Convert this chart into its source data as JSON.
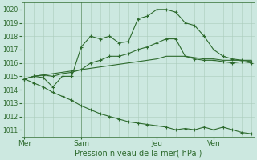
{
  "xlabel": "Pression niveau de la mer( hPa )",
  "background_color": "#cce8e0",
  "grid_color": "#aaccbb",
  "line_color": "#2d6a2d",
  "ylim": [
    1010.5,
    1020.5
  ],
  "yticks": [
    1011,
    1012,
    1013,
    1014,
    1015,
    1016,
    1017,
    1018,
    1019,
    1020
  ],
  "xtick_labels": [
    "Mer",
    "Sam",
    "Jeu",
    "Ven"
  ],
  "xtick_positions": [
    0,
    6,
    14,
    20
  ],
  "total_points": 25,
  "line1": [
    1014.8,
    1015.0,
    1014.9,
    1014.2,
    1015.0,
    1015.0,
    1017.2,
    1018.0,
    1017.8,
    1018.0,
    1017.5,
    1017.6,
    1019.3,
    1019.5,
    1020.0,
    1020.0,
    1019.8,
    1019.0,
    1018.8,
    1018.0,
    1017.0,
    1016.5,
    1016.3,
    1016.2,
    1016.1
  ],
  "line2": [
    1014.8,
    1015.0,
    1015.1,
    1015.0,
    1015.2,
    1015.3,
    1015.5,
    1016.0,
    1016.2,
    1016.5,
    1016.5,
    1016.7,
    1017.0,
    1017.2,
    1017.5,
    1017.8,
    1017.8,
    1016.5,
    1016.3,
    1016.2,
    1016.2,
    1016.1,
    1016.0,
    1016.1,
    1016.0
  ],
  "line3": [
    1014.8,
    1015.0,
    1015.1,
    1015.2,
    1015.3,
    1015.4,
    1015.5,
    1015.6,
    1015.7,
    1015.8,
    1015.9,
    1016.0,
    1016.1,
    1016.2,
    1016.3,
    1016.5,
    1016.5,
    1016.5,
    1016.4,
    1016.3,
    1016.3,
    1016.2,
    1016.2,
    1016.2,
    1016.2
  ],
  "line4": [
    1014.8,
    1014.5,
    1014.2,
    1013.8,
    1013.5,
    1013.2,
    1012.8,
    1012.5,
    1012.2,
    1012.0,
    1011.8,
    1011.6,
    1011.5,
    1011.4,
    1011.3,
    1011.2,
    1011.0,
    1011.1,
    1011.0,
    1011.2,
    1011.0,
    1011.2,
    1011.0,
    1010.8,
    1010.7
  ]
}
